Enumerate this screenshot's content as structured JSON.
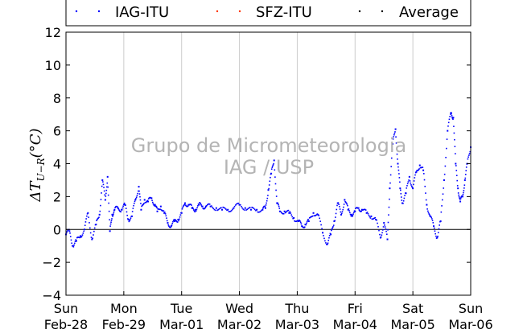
{
  "chart_data": {
    "type": "scatter",
    "title": "",
    "xlabel": "",
    "ylabel": "ΔT_{U−R}(°C)",
    "ylabel_display": "ΔT",
    "ylabel_sub": "U−R",
    "ylabel_tail": "(°C)",
    "ylim": [
      -4,
      12
    ],
    "yticks": [
      -4,
      -2,
      0,
      2,
      4,
      6,
      8,
      10,
      12
    ],
    "ytick_labels": [
      "−4",
      "−2",
      "0",
      "2",
      "4",
      "6",
      "8",
      "10",
      "12"
    ],
    "xlim": [
      0,
      7
    ],
    "x_unit": "days from Sun Feb-28 00:00",
    "xticks": [
      {
        "x": 0,
        "day": "Sun",
        "date": "Feb-28"
      },
      {
        "x": 1,
        "day": "Mon",
        "date": "Feb-29"
      },
      {
        "x": 2,
        "day": "Tue",
        "date": "Mar-01"
      },
      {
        "x": 3,
        "day": "Wed",
        "date": "Mar-02"
      },
      {
        "x": 4,
        "day": "Thu",
        "date": "Mar-03"
      },
      {
        "x": 5,
        "day": "Fri",
        "date": "Mar-04"
      },
      {
        "x": 6,
        "day": "Sat",
        "date": "Mar-05"
      },
      {
        "x": 7,
        "day": "Sun",
        "date": "Mar-06"
      }
    ],
    "grid": "vertical",
    "zero_line": 0,
    "legend_position": "top",
    "watermark": [
      "Grupo de Micrometeorologia",
      "IAG / USP"
    ],
    "series": [
      {
        "name": "IAG-ITU",
        "color": "#0000ff",
        "x": [
          0.0,
          0.06,
          0.12,
          0.18,
          0.25,
          0.32,
          0.38,
          0.45,
          0.52,
          0.58,
          0.63,
          0.68,
          0.72,
          0.76,
          0.8,
          0.84,
          0.9,
          0.96,
          1.02,
          1.08,
          1.14,
          1.2,
          1.26,
          1.3,
          1.36,
          1.42,
          1.48,
          1.54,
          1.58,
          1.64,
          1.7,
          1.76,
          1.82,
          1.88,
          1.94,
          2.0,
          2.06,
          2.12,
          2.18,
          2.24,
          2.3,
          2.36,
          2.42,
          2.5,
          2.6,
          2.7,
          2.8,
          2.9,
          3.0,
          3.1,
          3.2,
          3.3,
          3.4,
          3.45,
          3.5,
          3.55,
          3.6,
          3.65,
          3.7,
          3.78,
          3.86,
          3.94,
          4.02,
          4.08,
          4.14,
          4.2,
          4.28,
          4.36,
          4.44,
          4.52,
          4.58,
          4.64,
          4.7,
          4.76,
          4.82,
          4.88,
          4.94,
          5.0,
          5.06,
          5.12,
          5.2,
          5.28,
          5.36,
          5.44,
          5.5,
          5.56,
          5.6,
          5.65,
          5.7,
          5.74,
          5.78,
          5.82,
          5.88,
          5.94,
          6.0,
          6.06,
          6.12,
          6.18,
          6.24,
          6.3,
          6.36,
          6.42,
          6.48,
          6.54,
          6.6,
          6.66,
          6.7,
          6.74,
          6.78,
          6.82,
          6.86,
          6.9,
          6.94,
          7.0
        ],
        "y": [
          -0.3,
          -0.1,
          -1.0,
          -0.7,
          -0.4,
          0.0,
          1.0,
          -0.6,
          0.3,
          0.9,
          3.0,
          1.8,
          3.2,
          -0.1,
          0.9,
          1.2,
          1.3,
          1.2,
          1.5,
          0.6,
          0.8,
          1.8,
          2.6,
          1.2,
          1.8,
          1.7,
          1.9,
          1.5,
          1.1,
          1.4,
          1.0,
          0.4,
          0.2,
          0.5,
          0.6,
          1.0,
          1.6,
          1.5,
          1.3,
          1.2,
          1.5,
          1.4,
          1.4,
          1.4,
          1.3,
          1.2,
          1.2,
          1.3,
          1.5,
          1.3,
          1.2,
          1.2,
          1.2,
          1.3,
          2.4,
          3.4,
          4.2,
          1.6,
          1.1,
          1.1,
          1.0,
          0.7,
          0.5,
          0.2,
          0.3,
          0.5,
          1.0,
          0.9,
          -0.2,
          -0.9,
          -0.3,
          0.5,
          1.6,
          0.9,
          1.8,
          1.2,
          0.9,
          1.1,
          1.3,
          1.2,
          1.0,
          0.8,
          0.6,
          -0.5,
          0.4,
          -0.6,
          2.5,
          5.2,
          6.1,
          4.0,
          2.5,
          1.6,
          2.2,
          3.2,
          2.5,
          3.5,
          3.9,
          3.6,
          1.5,
          0.8,
          0.2,
          -0.5,
          0.5,
          3.0,
          6.0,
          7.1,
          6.8,
          4.0,
          2.5,
          1.7,
          2.0,
          3.0,
          4.0,
          5.0
        ]
      }
    ],
    "legend": [
      {
        "label": "IAG-ITU",
        "color": "#0000ff"
      },
      {
        "label": "SFZ-ITU",
        "color": "#ff3300"
      },
      {
        "label": "Average",
        "color": "#000000"
      }
    ]
  }
}
